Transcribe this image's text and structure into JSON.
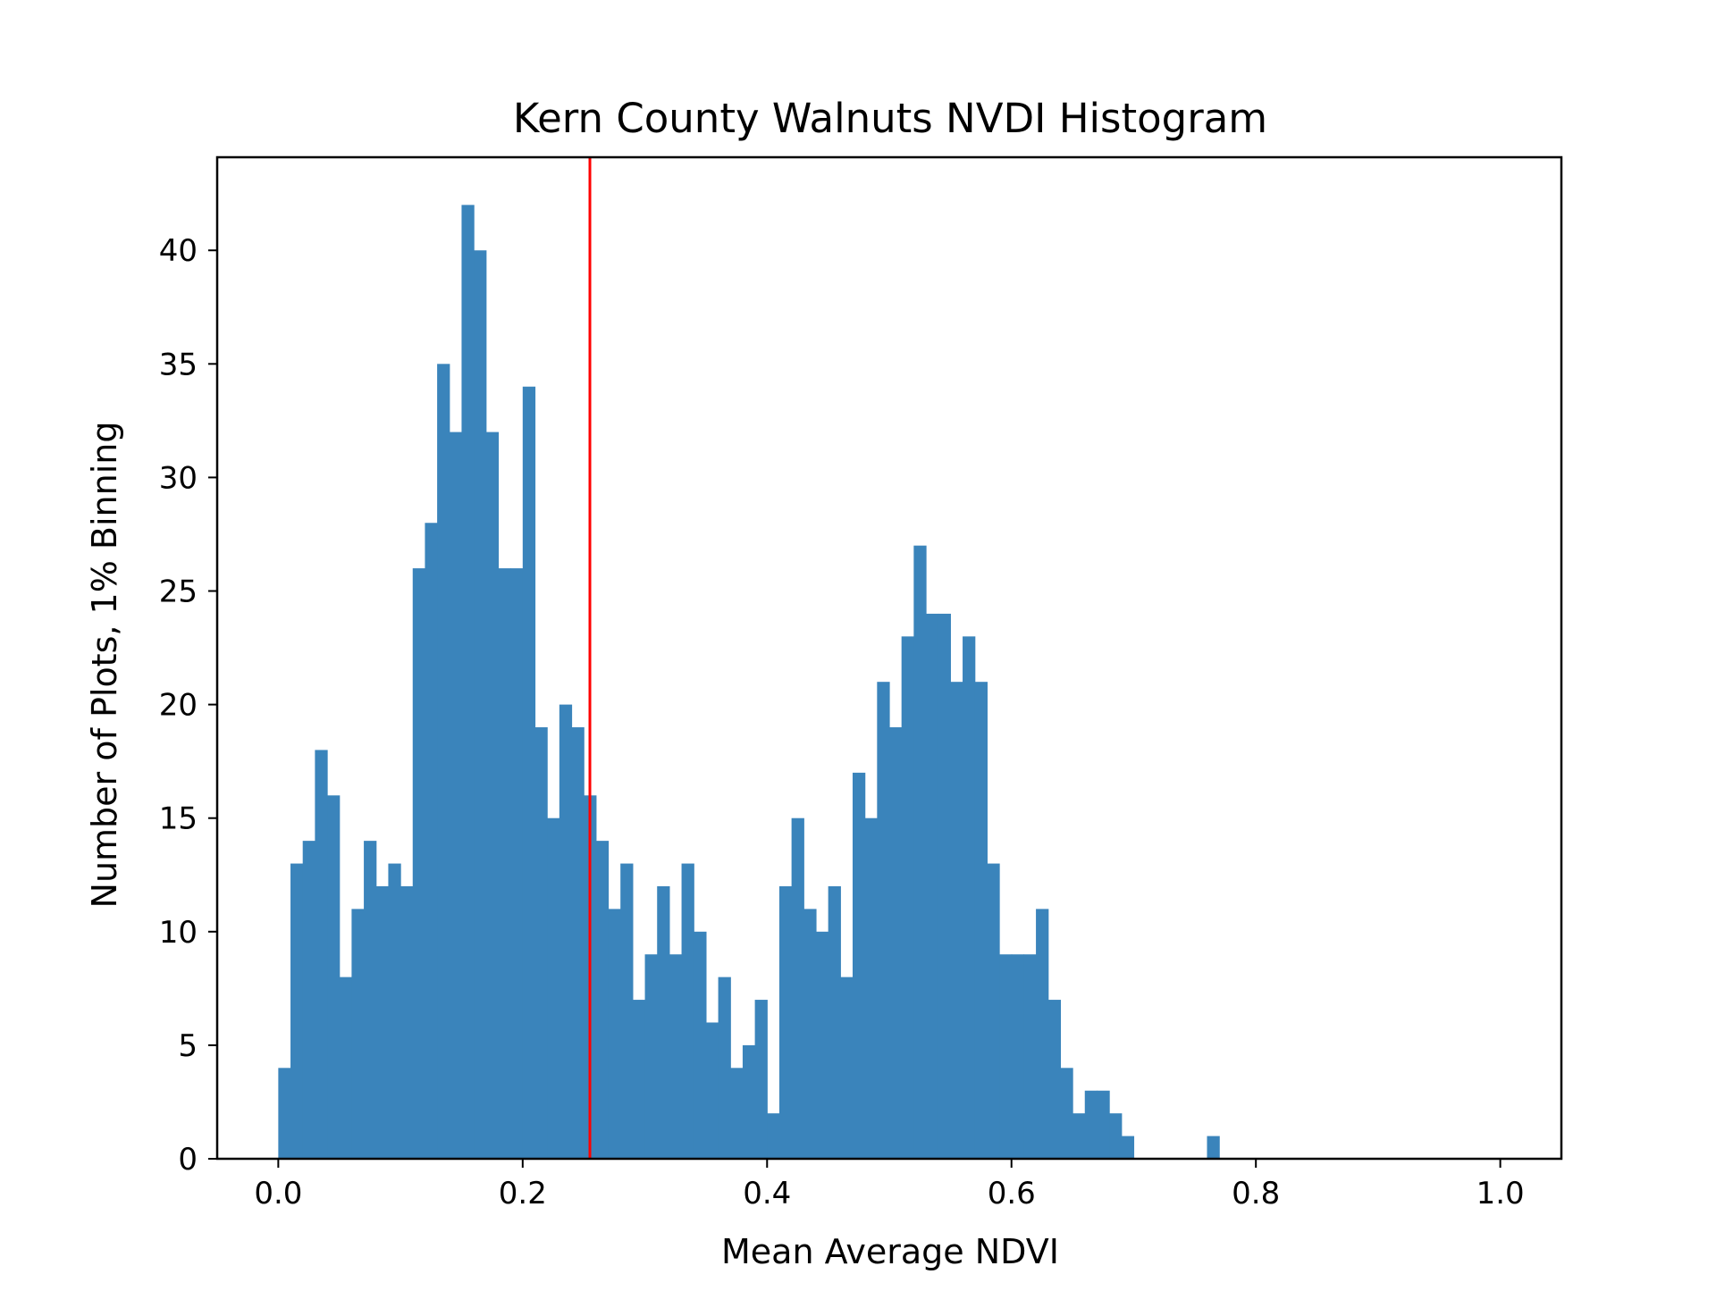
{
  "chart_data": {
    "type": "bar",
    "title": "Kern County Walnuts NVDI Histogram",
    "xlabel": "Mean Average NDVI",
    "ylabel": "Number of Plots, 1% Binning",
    "xlim": [
      -0.05,
      1.05
    ],
    "ylim": [
      0,
      44.1
    ],
    "x_ticks": [
      0.0,
      0.2,
      0.4,
      0.6,
      0.8,
      1.0
    ],
    "x_tick_labels": [
      "0.0",
      "0.2",
      "0.4",
      "0.6",
      "0.8",
      "1.0"
    ],
    "y_ticks": [
      0,
      5,
      10,
      15,
      20,
      25,
      30,
      35,
      40
    ],
    "y_tick_labels": [
      "0",
      "5",
      "10",
      "15",
      "20",
      "25",
      "30",
      "35",
      "40"
    ],
    "grid": false,
    "bin_width": 0.01,
    "bin_start": 0.0,
    "bar_color": "#3a84bb",
    "values": [
      4,
      13,
      14,
      18,
      16,
      8,
      11,
      14,
      12,
      13,
      12,
      26,
      28,
      35,
      32,
      42,
      40,
      32,
      26,
      26,
      34,
      19,
      15,
      20,
      19,
      16,
      14,
      11,
      13,
      7,
      9,
      12,
      9,
      13,
      10,
      6,
      8,
      4,
      5,
      7,
      2,
      12,
      15,
      11,
      10,
      12,
      8,
      17,
      15,
      21,
      19,
      23,
      27,
      24,
      24,
      21,
      23,
      21,
      13,
      9,
      9,
      9,
      11,
      7,
      4,
      2,
      3,
      3,
      2,
      1,
      0,
      0,
      0,
      0,
      0,
      0,
      1,
      0,
      0,
      0,
      0,
      0,
      0,
      0,
      0,
      0,
      0,
      0,
      0,
      0,
      0,
      0,
      0,
      0,
      0,
      0,
      0,
      0,
      0,
      0
    ],
    "reference_line": {
      "x": 0.255,
      "color": "#ff0000"
    }
  }
}
